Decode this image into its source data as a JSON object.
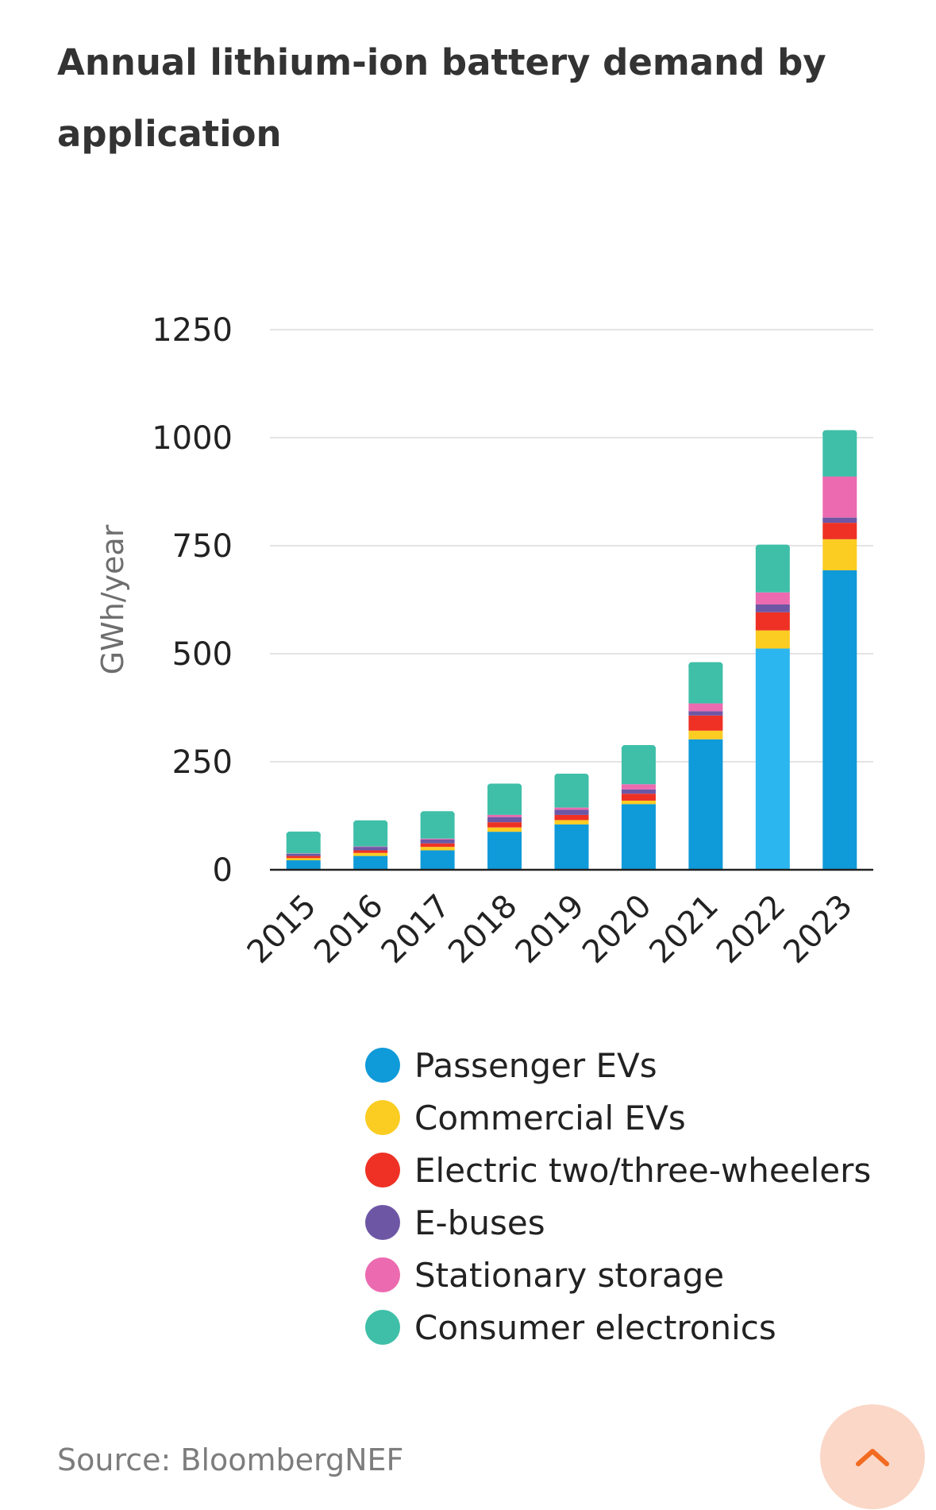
{
  "title": "Annual lithium-ion battery demand by application",
  "source": "Source: BloombergNEF",
  "scroll_top_icon": "chevron-up-icon",
  "chart_data": {
    "type": "bar",
    "stacked": true,
    "title": "Annual lithium-ion battery demand by application",
    "xlabel": "",
    "ylabel": "GWh/year",
    "ylim": [
      0,
      1250
    ],
    "yticks": [
      0,
      250,
      500,
      750,
      1000,
      1250
    ],
    "grid": true,
    "legend_position": "bottom",
    "categories": [
      "2015",
      "2016",
      "2017",
      "2018",
      "2019",
      "2020",
      "2021",
      "2022",
      "2023"
    ],
    "series": [
      {
        "name": "Passenger EVs",
        "color": "#0f9ad9",
        "values": [
          22,
          32,
          45,
          88,
          105,
          152,
          302,
          512,
          693
        ]
      },
      {
        "name": "Commercial EVs",
        "color": "#fbcc22",
        "values": [
          5,
          7,
          8,
          10,
          10,
          8,
          20,
          42,
          72
        ]
      },
      {
        "name": "Electric two/three-wheelers",
        "color": "#ee3124",
        "values": [
          5,
          6,
          8,
          12,
          12,
          16,
          35,
          42,
          38
        ]
      },
      {
        "name": "E-buses",
        "color": "#6d57a5",
        "values": [
          5,
          8,
          9,
          12,
          12,
          10,
          10,
          18,
          12
        ]
      },
      {
        "name": "Stationary storage",
        "color": "#ec6ab0",
        "values": [
          1,
          1,
          2,
          5,
          5,
          12,
          18,
          28,
          95
        ]
      },
      {
        "name": "Consumer electronics",
        "color": "#3fbfa8",
        "values": [
          45,
          55,
          58,
          67,
          73,
          85,
          90,
          105,
          102
        ]
      }
    ],
    "highlight": {
      "category": "2022",
      "series": "Passenger EVs",
      "color": "#2bb6f0"
    }
  }
}
